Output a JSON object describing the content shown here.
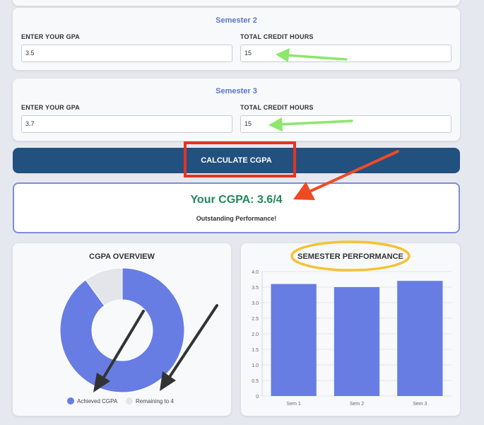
{
  "semesters": [
    {
      "title": "Semester 2",
      "gpa_label": "ENTER YOUR GPA",
      "gpa_value": "3.5",
      "credit_label": "TOTAL CREDIT HOURS",
      "credit_value": "15"
    },
    {
      "title": "Semester 3",
      "gpa_label": "ENTER YOUR GPA",
      "gpa_value": "3.7",
      "credit_label": "TOTAL CREDIT HOURS",
      "credit_value": "15"
    }
  ],
  "calculate_button": "CALCULATE CGPA",
  "result": {
    "cgpa_text": "Your CGPA: 3.6/4",
    "performance": "Outstanding Performance!"
  },
  "colors": {
    "accent": "#687de3",
    "button": "#22507f",
    "result": "#1f8a5c",
    "remaining": "#e4e5ea"
  },
  "chart_data": [
    {
      "type": "pie",
      "title": "CGPA OVERVIEW",
      "categories": [
        "Achieved CGPA",
        "Remaining to 4"
      ],
      "values": [
        3.6,
        0.4
      ],
      "legend": "bottom"
    },
    {
      "type": "bar",
      "title": "SEMESTER PERFORMANCE",
      "categories": [
        "Sem 1",
        "Sem 2",
        "Sem 3"
      ],
      "values": [
        3.6,
        3.5,
        3.7
      ],
      "ylim": [
        0,
        4
      ],
      "yticks": [
        "0",
        "0.5",
        "1.0",
        "1.5",
        "2.0",
        "2.5",
        "3.0",
        "3.5",
        "4.0"
      ],
      "grid": true
    }
  ]
}
